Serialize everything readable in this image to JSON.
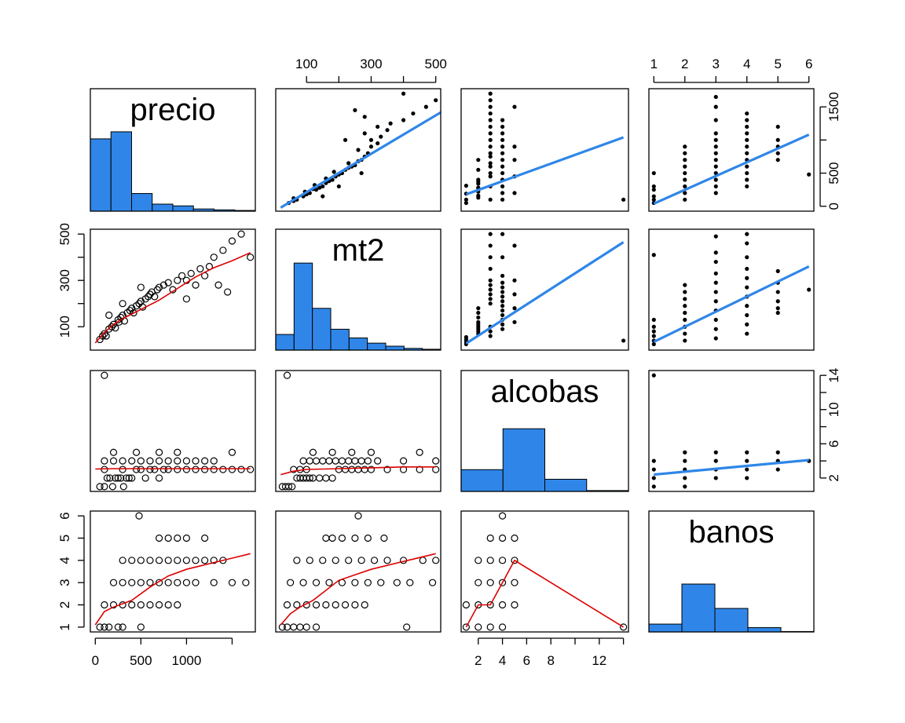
{
  "chart_data": {
    "type": "scatter-matrix",
    "variables": [
      "precio",
      "mt2",
      "alcobas",
      "banos"
    ],
    "colors": {
      "histogram": "#2f86e8",
      "regression": "#2f86e8",
      "smoother": "#dd0000",
      "points": "#000000"
    },
    "ranges": {
      "precio": [
        0,
        1700
      ],
      "mt2": [
        20,
        500
      ],
      "alcobas": [
        1,
        14
      ],
      "banos": [
        1,
        6
      ]
    },
    "ticks": {
      "precio": [
        0,
        500,
        1000,
        1500
      ],
      "mt2": [
        100,
        200,
        300,
        400,
        500
      ],
      "alcobas": [
        2,
        4,
        6,
        8,
        10,
        12,
        14
      ],
      "banos": [
        1,
        2,
        3,
        4,
        5,
        6
      ]
    },
    "tick_labels": {
      "precio_bottom": [
        "0",
        "500",
        "1000"
      ],
      "precio_right": [
        "0",
        "500",
        "1500"
      ],
      "mt2_top": [
        "100",
        "300",
        "500"
      ],
      "mt2_left": [
        "100",
        "300",
        "500"
      ],
      "alcobas_bottom": [
        "2",
        "4",
        "6",
        "8",
        "12"
      ],
      "alcobas_right": [
        "2",
        "6",
        "10",
        "14"
      ],
      "banos_top": [
        "1",
        "2",
        "3",
        "4",
        "5",
        "6"
      ],
      "banos_left": [
        "1",
        "2",
        "3",
        "4",
        "5",
        "6"
      ]
    },
    "histograms": {
      "precio": [
        0.82,
        0.9,
        0.2,
        0.08,
        0.06,
        0.025,
        0.015,
        0.008
      ],
      "mt2": [
        0.18,
        1.0,
        0.48,
        0.24,
        0.14,
        0.08,
        0.045,
        0.02,
        0.01
      ],
      "alcobas": [
        0.25,
        0.72,
        0.14,
        0.01
      ],
      "banos": [
        0.09,
        0.55,
        0.27,
        0.05,
        0.005
      ]
    },
    "regression": {
      "precio~mt2": [
        [
          20,
          -20
        ],
        [
          520,
          1430
        ]
      ],
      "precio~alcobas": [
        [
          1,
          180
        ],
        [
          14,
          1040
        ]
      ],
      "precio~banos": [
        [
          1,
          40
        ],
        [
          6,
          1080
        ]
      ],
      "mt2~alcobas": [
        [
          1,
          28
        ],
        [
          14,
          465
        ]
      ],
      "mt2~banos": [
        [
          1,
          35
        ],
        [
          6,
          360
        ]
      ],
      "alcobas~banos": [
        [
          1,
          2.4
        ],
        [
          6,
          4.1
        ]
      ]
    },
    "smoothers": {
      "mt2~precio": [
        [
          0,
          30
        ],
        [
          100,
          75
        ],
        [
          200,
          110
        ],
        [
          300,
          135
        ],
        [
          400,
          155
        ],
        [
          500,
          175
        ],
        [
          700,
          215
        ],
        [
          900,
          265
        ],
        [
          1100,
          315
        ],
        [
          1300,
          355
        ],
        [
          1500,
          385
        ],
        [
          1700,
          420
        ]
      ],
      "alcobas~precio": [
        [
          0,
          3.05
        ],
        [
          200,
          3.1
        ],
        [
          500,
          3.1
        ],
        [
          1000,
          3.1
        ],
        [
          1500,
          3.1
        ],
        [
          1700,
          3.1
        ]
      ],
      "alcobas~mt2": [
        [
          20,
          2.4
        ],
        [
          60,
          2.8
        ],
        [
          100,
          3.0
        ],
        [
          200,
          3.1
        ],
        [
          300,
          3.2
        ],
        [
          400,
          3.3
        ],
        [
          500,
          3.3
        ]
      ],
      "banos~precio": [
        [
          0,
          1.1
        ],
        [
          100,
          1.7
        ],
        [
          200,
          1.9
        ],
        [
          400,
          2.2
        ],
        [
          600,
          2.8
        ],
        [
          800,
          3.3
        ],
        [
          1000,
          3.6
        ],
        [
          1200,
          3.8
        ],
        [
          1500,
          4.1
        ],
        [
          1700,
          4.3
        ]
      ],
      "banos~mt2": [
        [
          20,
          1.1
        ],
        [
          50,
          1.6
        ],
        [
          80,
          1.9
        ],
        [
          120,
          2.2
        ],
        [
          200,
          3.1
        ],
        [
          300,
          3.6
        ],
        [
          400,
          3.95
        ],
        [
          500,
          4.3
        ]
      ],
      "banos~alcobas": [
        [
          1,
          1.0
        ],
        [
          2,
          2.0
        ],
        [
          3,
          2.0
        ],
        [
          4,
          3.0
        ],
        [
          5,
          4.0
        ],
        [
          14,
          1.0
        ]
      ]
    },
    "sample_points": {
      "precio-mt2": [
        [
          50,
          45
        ],
        [
          80,
          60
        ],
        [
          100,
          70
        ],
        [
          120,
          60
        ],
        [
          150,
          90
        ],
        [
          180,
          100
        ],
        [
          200,
          110
        ],
        [
          220,
          95
        ],
        [
          250,
          130
        ],
        [
          260,
          120
        ],
        [
          280,
          140
        ],
        [
          300,
          150
        ],
        [
          320,
          125
        ],
        [
          350,
          160
        ],
        [
          380,
          170
        ],
        [
          400,
          180
        ],
        [
          420,
          160
        ],
        [
          450,
          190
        ],
        [
          480,
          200
        ],
        [
          500,
          210
        ],
        [
          520,
          185
        ],
        [
          550,
          220
        ],
        [
          580,
          230
        ],
        [
          600,
          240
        ],
        [
          620,
          250
        ],
        [
          650,
          230
        ],
        [
          680,
          260
        ],
        [
          700,
          270
        ],
        [
          750,
          280
        ],
        [
          800,
          290
        ],
        [
          850,
          260
        ],
        [
          900,
          300
        ],
        [
          950,
          320
        ],
        [
          1000,
          300
        ],
        [
          1050,
          330
        ],
        [
          1100,
          280
        ],
        [
          1150,
          350
        ],
        [
          1200,
          320
        ],
        [
          1250,
          360
        ],
        [
          1300,
          400
        ],
        [
          1350,
          280
        ],
        [
          1400,
          430
        ],
        [
          1450,
          250
        ],
        [
          1500,
          470
        ],
        [
          1600,
          500
        ],
        [
          1700,
          400
        ],
        [
          1000,
          220
        ],
        [
          500,
          270
        ],
        [
          150,
          150
        ],
        [
          300,
          200
        ]
      ],
      "precio-alcobas": [
        [
          50,
          1
        ],
        [
          100,
          1
        ],
        [
          130,
          2
        ],
        [
          160,
          2
        ],
        [
          190,
          1
        ],
        [
          220,
          2
        ],
        [
          250,
          2
        ],
        [
          280,
          2
        ],
        [
          310,
          1
        ],
        [
          340,
          2
        ],
        [
          370,
          2
        ],
        [
          400,
          2
        ],
        [
          450,
          3
        ],
        [
          500,
          3
        ],
        [
          550,
          2
        ],
        [
          600,
          3
        ],
        [
          650,
          3
        ],
        [
          700,
          2
        ],
        [
          750,
          3
        ],
        [
          800,
          3
        ],
        [
          900,
          3
        ],
        [
          1000,
          3
        ],
        [
          1100,
          3
        ],
        [
          1200,
          3
        ],
        [
          1300,
          3
        ],
        [
          1400,
          3
        ],
        [
          1500,
          3
        ],
        [
          1600,
          3
        ],
        [
          1700,
          3
        ],
        [
          100,
          4
        ],
        [
          200,
          4
        ],
        [
          300,
          4
        ],
        [
          400,
          4
        ],
        [
          500,
          4
        ],
        [
          600,
          4
        ],
        [
          700,
          4
        ],
        [
          800,
          4
        ],
        [
          900,
          4
        ],
        [
          1000,
          4
        ],
        [
          1100,
          4
        ],
        [
          1200,
          4
        ],
        [
          1300,
          4
        ],
        [
          1500,
          5
        ],
        [
          200,
          5
        ],
        [
          450,
          5
        ],
        [
          700,
          5
        ],
        [
          900,
          5
        ],
        [
          100,
          3
        ],
        [
          300,
          3
        ],
        [
          100,
          14
        ]
      ],
      "mt2-alcobas": [
        [
          25,
          1
        ],
        [
          35,
          1
        ],
        [
          45,
          1
        ],
        [
          55,
          1
        ],
        [
          70,
          2
        ],
        [
          80,
          2
        ],
        [
          90,
          2
        ],
        [
          100,
          2
        ],
        [
          110,
          2
        ],
        [
          120,
          2
        ],
        [
          140,
          2
        ],
        [
          160,
          2
        ],
        [
          180,
          2
        ],
        [
          200,
          3
        ],
        [
          220,
          3
        ],
        [
          240,
          3
        ],
        [
          260,
          3
        ],
        [
          280,
          3
        ],
        [
          300,
          3
        ],
        [
          350,
          3
        ],
        [
          400,
          3
        ],
        [
          450,
          3
        ],
        [
          500,
          3
        ],
        [
          90,
          4
        ],
        [
          110,
          4
        ],
        [
          130,
          4
        ],
        [
          150,
          4
        ],
        [
          170,
          4
        ],
        [
          190,
          4
        ],
        [
          210,
          4
        ],
        [
          230,
          4
        ],
        [
          250,
          4
        ],
        [
          270,
          4
        ],
        [
          290,
          4
        ],
        [
          320,
          4
        ],
        [
          400,
          4
        ],
        [
          500,
          4
        ],
        [
          120,
          5
        ],
        [
          180,
          5
        ],
        [
          240,
          5
        ],
        [
          300,
          5
        ],
        [
          450,
          5
        ],
        [
          80,
          3
        ],
        [
          100,
          3
        ],
        [
          60,
          3
        ],
        [
          40,
          14
        ]
      ],
      "banos-precio": [
        [
          1,
          50
        ],
        [
          1,
          100
        ],
        [
          1,
          150
        ],
        [
          1,
          250
        ],
        [
          1,
          300
        ],
        [
          2,
          100
        ],
        [
          2,
          200
        ],
        [
          2,
          300
        ],
        [
          2,
          400
        ],
        [
          2,
          500
        ],
        [
          2,
          600
        ],
        [
          2,
          700
        ],
        [
          2,
          800
        ],
        [
          2,
          900
        ],
        [
          3,
          200
        ],
        [
          3,
          300
        ],
        [
          3,
          400
        ],
        [
          3,
          500
        ],
        [
          3,
          600
        ],
        [
          3,
          700
        ],
        [
          3,
          800
        ],
        [
          3,
          900
        ],
        [
          3,
          1000
        ],
        [
          3,
          1100
        ],
        [
          3,
          1300
        ],
        [
          3,
          1500
        ],
        [
          3,
          1650
        ],
        [
          4,
          300
        ],
        [
          4,
          400
        ],
        [
          4,
          500
        ],
        [
          4,
          600
        ],
        [
          4,
          700
        ],
        [
          4,
          800
        ],
        [
          4,
          900
        ],
        [
          4,
          1000
        ],
        [
          4,
          1100
        ],
        [
          4,
          1200
        ],
        [
          4,
          1300
        ],
        [
          4,
          1400
        ],
        [
          5,
          700
        ],
        [
          5,
          800
        ],
        [
          5,
          900
        ],
        [
          5,
          1000
        ],
        [
          5,
          1200
        ],
        [
          6,
          480
        ],
        [
          1,
          500
        ]
      ],
      "banos-mt2": [
        [
          1,
          25
        ],
        [
          1,
          40
        ],
        [
          1,
          60
        ],
        [
          1,
          80
        ],
        [
          1,
          100
        ],
        [
          1,
          130
        ],
        [
          1,
          410
        ],
        [
          2,
          40
        ],
        [
          2,
          70
        ],
        [
          2,
          100
        ],
        [
          2,
          130
        ],
        [
          2,
          160
        ],
        [
          2,
          190
        ],
        [
          2,
          220
        ],
        [
          2,
          250
        ],
        [
          2,
          280
        ],
        [
          3,
          50
        ],
        [
          3,
          90
        ],
        [
          3,
          130
        ],
        [
          3,
          170
        ],
        [
          3,
          210
        ],
        [
          3,
          250
        ],
        [
          3,
          290
        ],
        [
          3,
          330
        ],
        [
          3,
          380
        ],
        [
          3,
          420
        ],
        [
          3,
          490
        ],
        [
          4,
          70
        ],
        [
          4,
          110
        ],
        [
          4,
          150
        ],
        [
          4,
          190
        ],
        [
          4,
          230
        ],
        [
          4,
          270
        ],
        [
          4,
          310
        ],
        [
          4,
          350
        ],
        [
          4,
          400
        ],
        [
          4,
          460
        ],
        [
          4,
          500
        ],
        [
          5,
          160
        ],
        [
          5,
          180
        ],
        [
          5,
          210
        ],
        [
          5,
          250
        ],
        [
          5,
          290
        ],
        [
          5,
          340
        ],
        [
          6,
          260
        ]
      ],
      "banos-alcobas": [
        [
          1,
          1
        ],
        [
          1,
          2
        ],
        [
          1,
          3
        ],
        [
          1,
          4
        ],
        [
          1,
          14
        ],
        [
          2,
          1
        ],
        [
          2,
          2
        ],
        [
          2,
          3
        ],
        [
          2,
          4
        ],
        [
          2,
          5
        ],
        [
          3,
          2
        ],
        [
          3,
          3
        ],
        [
          3,
          4
        ],
        [
          3,
          5
        ],
        [
          4,
          2
        ],
        [
          4,
          3
        ],
        [
          4,
          4
        ],
        [
          4,
          5
        ],
        [
          5,
          3
        ],
        [
          5,
          4
        ],
        [
          5,
          5
        ],
        [
          6,
          4
        ]
      ]
    }
  }
}
